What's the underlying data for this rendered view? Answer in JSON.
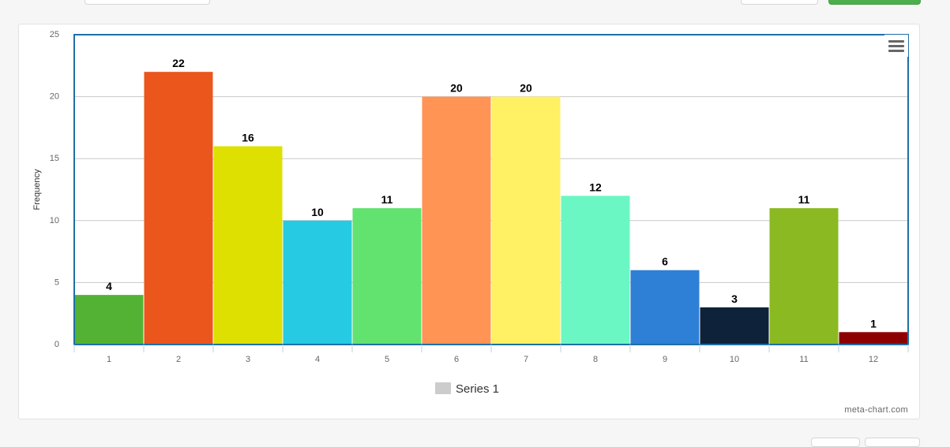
{
  "chart_data": {
    "type": "bar",
    "categories": [
      "1",
      "2",
      "3",
      "4",
      "5",
      "6",
      "7",
      "8",
      "9",
      "10",
      "11",
      "12"
    ],
    "series": [
      {
        "name": "Series 1",
        "values": [
          4,
          22,
          16,
          10,
          11,
          20,
          20,
          12,
          6,
          3,
          11,
          1
        ]
      }
    ],
    "bar_colors": [
      "#53b234",
      "#ea561c",
      "#dde000",
      "#26cae2",
      "#62e26f",
      "#ff9454",
      "#fff163",
      "#6bf7c3",
      "#2e7fd6",
      "#0e233a",
      "#8ab921",
      "#8d0000"
    ],
    "ylabel": "Frequency",
    "xlabel": "",
    "ylim": [
      0,
      25
    ],
    "yticks": [
      0,
      5,
      10,
      15,
      20,
      25
    ],
    "grid": true,
    "legend": "bottom-center",
    "legend_color": "#cccccc",
    "data_labels": true
  },
  "credit": "meta-chart.com",
  "menu_icon": "hamburger-menu-icon"
}
